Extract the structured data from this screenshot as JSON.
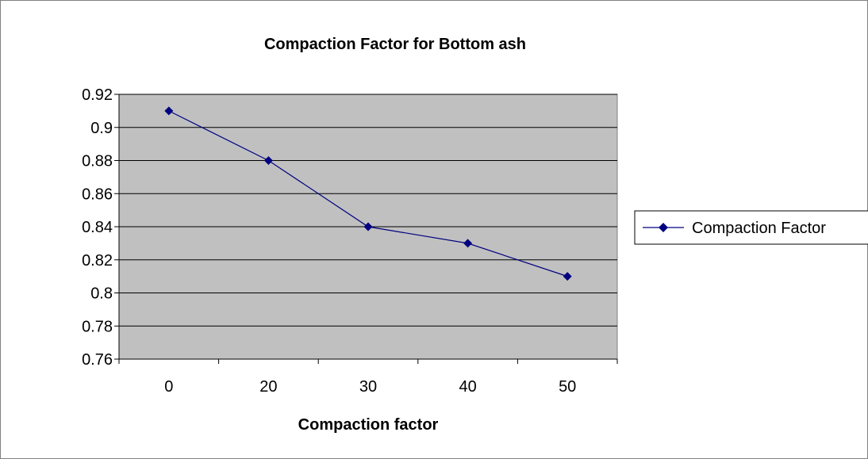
{
  "chart_data": {
    "type": "line",
    "title": "Compaction Factor for Bottom ash",
    "xlabel": "Compaction factor",
    "ylabel": "",
    "categories": [
      "0",
      "20",
      "30",
      "40",
      "50"
    ],
    "series": [
      {
        "name": "Compaction Factor",
        "values": [
          0.91,
          0.88,
          0.84,
          0.83,
          0.81
        ]
      }
    ],
    "ylim": [
      0.76,
      0.92
    ],
    "yticks": [
      "0.76",
      "0.78",
      "0.8",
      "0.82",
      "0.84",
      "0.86",
      "0.88",
      "0.9",
      "0.92"
    ],
    "grid": true,
    "legend": "right",
    "colors": {
      "plot_background": "#c0c0c0",
      "series": "#000080",
      "gridline": "#000000",
      "frame": "#808080"
    }
  }
}
